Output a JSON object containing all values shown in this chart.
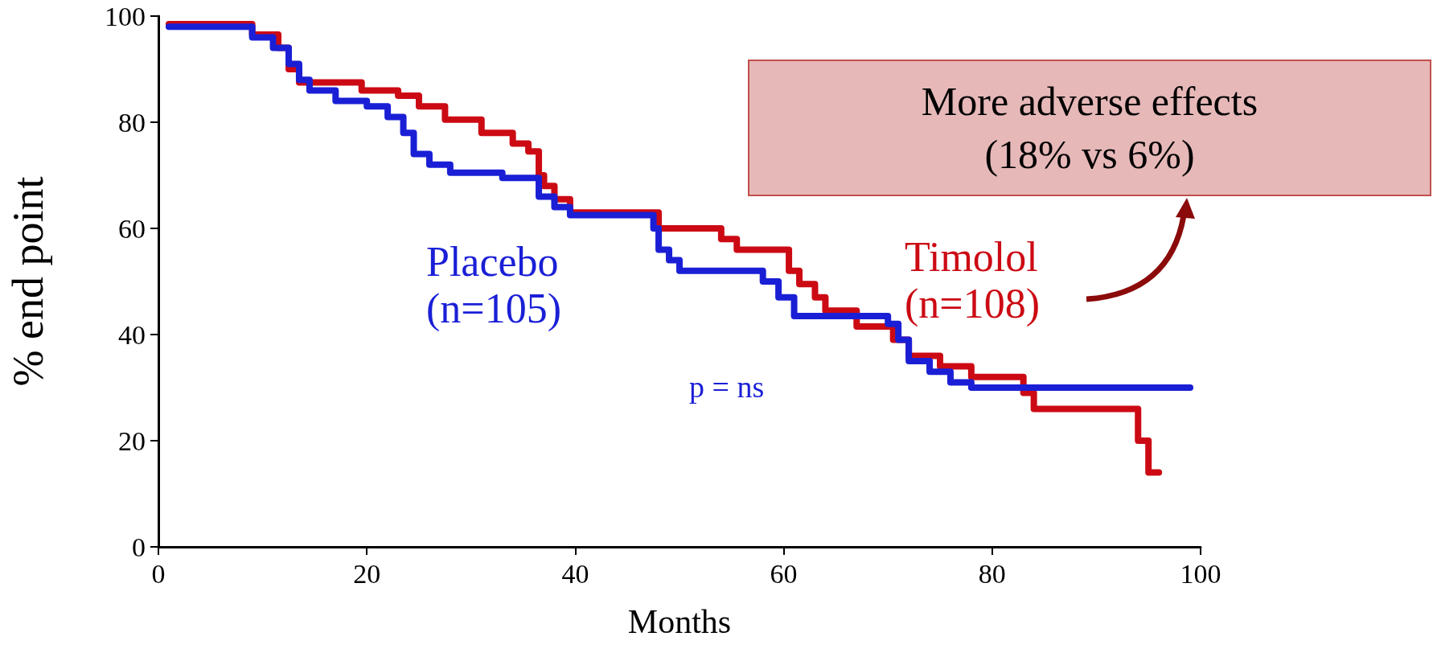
{
  "chart_data": {
    "type": "step",
    "xlabel": "Months",
    "ylabel": "% end point",
    "xlim": [
      0,
      100
    ],
    "xticks": [
      0,
      20,
      40,
      60,
      80,
      100
    ],
    "ylim": [
      0,
      100
    ],
    "yticks": [
      0,
      20,
      40,
      60,
      80,
      100
    ],
    "grid": false,
    "legend": false,
    "marker": "none",
    "line_style": "solid",
    "annotations": [
      "p = ns",
      "More adverse effects\n(18% vs 6%)"
    ],
    "series": [
      {
        "name": "Timolol\n(n=108)",
        "color": "#cc0a14",
        "x": [
          1,
          9,
          11.5,
          12.5,
          13.5,
          19.5,
          23,
          25,
          27.5,
          31,
          34,
          35.5,
          36.5,
          37,
          38,
          39.5,
          48,
          54,
          55.5,
          60.5,
          61.5,
          63,
          64,
          67,
          70.5,
          72,
          75,
          78,
          83,
          84,
          94,
          95,
          96
        ],
        "values": [
          98.5,
          96.5,
          94,
          90,
          87.5,
          86,
          85,
          83,
          80.5,
          78,
          76,
          74.5,
          70,
          68,
          65.5,
          63,
          60,
          58,
          56,
          52,
          49.5,
          47,
          44.5,
          41.5,
          39,
          36,
          34,
          32,
          29,
          26,
          20,
          14,
          14
        ]
      },
      {
        "name": "Placebo\n(n=105)",
        "color": "#1a1fd6",
        "x": [
          1,
          9,
          11,
          12.5,
          13.5,
          14.5,
          17,
          20,
          22,
          23.5,
          24.5,
          26,
          28,
          33,
          36.5,
          38,
          39.5,
          47.5,
          48,
          49,
          50,
          58,
          59.5,
          61,
          70,
          71,
          72,
          74,
          76,
          78,
          99
        ],
        "values": [
          98,
          96,
          94,
          91,
          88,
          86,
          84,
          83,
          81,
          78,
          74,
          72,
          70.5,
          69.5,
          66,
          64,
          62.5,
          60,
          56,
          54,
          52,
          50,
          47,
          43.5,
          42,
          39,
          35,
          33,
          31,
          30,
          30
        ]
      }
    ]
  }
}
